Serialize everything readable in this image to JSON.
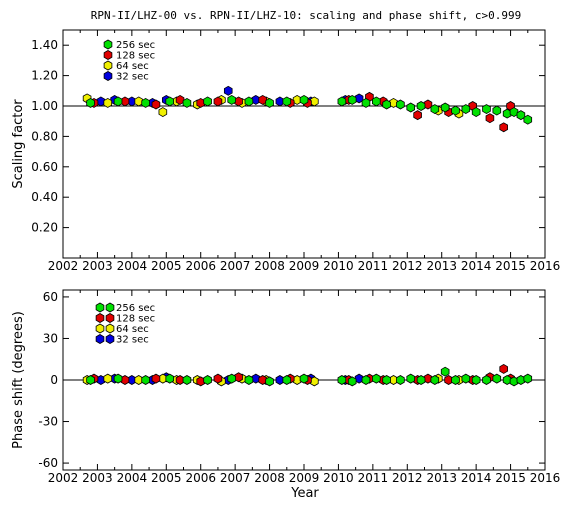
{
  "title": "RPN-II/LHZ-00 vs. RPN-II/LHZ-10: scaling and phase shift, c>0.999",
  "x_axis_label": "Year",
  "chart_data": [
    {
      "type": "scatter",
      "ylabel": "Scaling factor",
      "xlim": [
        2002,
        2016
      ],
      "ylim": [
        0.0,
        1.5
      ],
      "yticks": [
        0.2,
        0.4,
        0.6,
        0.8,
        1.0,
        1.2,
        1.4
      ],
      "ytick_labels": [
        "0.20",
        "0.40",
        "0.60",
        "0.80",
        "1.00",
        "1.20",
        "1.40"
      ],
      "xticks": [
        2002,
        2003,
        2004,
        2005,
        2006,
        2007,
        2008,
        2009,
        2010,
        2011,
        2012,
        2013,
        2014,
        2015,
        2016
      ],
      "reference_line": 1.0,
      "legend_position": "top-left",
      "series": [
        {
          "name": "256 sec",
          "color": "#00e000",
          "x": [
            2002.8,
            2003.6,
            2004.4,
            2005.1,
            2005.6,
            2006.2,
            2006.9,
            2007.4,
            2008.0,
            2008.5,
            2009.0,
            2010.1,
            2010.4,
            2010.8,
            2011.1,
            2011.4,
            2011.8,
            2012.1,
            2012.4,
            2012.8,
            2013.1,
            2013.4,
            2013.7,
            2014.0,
            2014.3,
            2014.6,
            2014.9,
            2015.1,
            2015.3,
            2015.5
          ],
          "y": [
            1.02,
            1.03,
            1.02,
            1.03,
            1.02,
            1.03,
            1.04,
            1.03,
            1.02,
            1.03,
            1.04,
            1.03,
            1.04,
            1.02,
            1.03,
            1.01,
            1.01,
            0.99,
            1.0,
            0.98,
            0.99,
            0.97,
            0.98,
            0.96,
            0.98,
            0.97,
            0.95,
            0.96,
            0.94,
            0.91
          ]
        },
        {
          "name": "128 sec",
          "color": "#e00000",
          "x": [
            2002.9,
            2003.8,
            2004.7,
            2005.4,
            2006.0,
            2006.5,
            2007.1,
            2007.8,
            2008.6,
            2009.1,
            2010.3,
            2010.9,
            2011.3,
            2012.3,
            2012.6,
            2013.2,
            2013.9,
            2014.4,
            2014.8,
            2015.0
          ],
          "y": [
            1.02,
            1.03,
            1.01,
            1.04,
            1.02,
            1.03,
            1.03,
            1.04,
            1.02,
            1.02,
            1.04,
            1.06,
            1.03,
            0.94,
            1.01,
            0.96,
            1.0,
            0.92,
            0.86,
            1.0
          ]
        },
        {
          "name": "64 sec",
          "color": "#f0f000",
          "x": [
            2002.7,
            2003.3,
            2004.2,
            2004.9,
            2005.3,
            2005.9,
            2006.6,
            2007.2,
            2007.9,
            2008.8,
            2009.3,
            2011.6,
            2012.9,
            2013.5
          ],
          "y": [
            1.05,
            1.02,
            1.03,
            0.96,
            1.03,
            1.01,
            1.04,
            1.02,
            1.03,
            1.04,
            1.03,
            1.02,
            0.97,
            0.95
          ]
        },
        {
          "name": "32 sec",
          "color": "#0000e0",
          "x": [
            2003.1,
            2003.5,
            2004.0,
            2004.6,
            2005.0,
            2006.8,
            2007.6,
            2008.3,
            2009.2,
            2010.2,
            2010.6
          ],
          "y": [
            1.03,
            1.04,
            1.03,
            1.02,
            1.04,
            1.1,
            1.04,
            1.03,
            1.03,
            1.04,
            1.05
          ]
        }
      ]
    },
    {
      "type": "scatter",
      "ylabel": "Phase shift (degrees)",
      "xlabel": "Year",
      "xlim": [
        2002,
        2016
      ],
      "ylim": [
        -65,
        65
      ],
      "yticks": [
        -60,
        -30,
        0,
        30,
        60
      ],
      "ytick_labels": [
        "-60",
        "-30",
        "0",
        "30",
        "60"
      ],
      "xticks": [
        2002,
        2003,
        2004,
        2005,
        2006,
        2007,
        2008,
        2009,
        2010,
        2011,
        2012,
        2013,
        2014,
        2015,
        2016
      ],
      "reference_line": 0,
      "legend_position": "top-left",
      "series": [
        {
          "name": "256 sec",
          "color": "#00e000",
          "x": [
            2002.8,
            2003.6,
            2004.4,
            2005.1,
            2005.6,
            2006.2,
            2006.9,
            2007.4,
            2008.0,
            2008.5,
            2009.0,
            2010.1,
            2010.4,
            2010.8,
            2011.1,
            2011.4,
            2011.8,
            2012.1,
            2012.4,
            2012.8,
            2013.1,
            2013.4,
            2013.7,
            2014.0,
            2014.3,
            2014.6,
            2014.9,
            2015.1,
            2015.3,
            2015.5
          ],
          "y": [
            0,
            1,
            0,
            1,
            0,
            0,
            1,
            0,
            -1,
            0,
            1,
            0,
            -1,
            0,
            1,
            0,
            0,
            1,
            0,
            0,
            6,
            0,
            1,
            0,
            0,
            1,
            0,
            -1,
            0,
            1
          ]
        },
        {
          "name": "128 sec",
          "color": "#e00000",
          "x": [
            2002.9,
            2003.8,
            2004.7,
            2005.4,
            2006.0,
            2006.5,
            2007.1,
            2007.8,
            2008.6,
            2009.1,
            2010.3,
            2010.9,
            2011.3,
            2012.3,
            2012.6,
            2013.2,
            2013.9,
            2014.4,
            2014.8,
            2015.0
          ],
          "y": [
            1,
            0,
            1,
            0,
            -1,
            1,
            2,
            0,
            1,
            0,
            0,
            1,
            0,
            0,
            1,
            0,
            0,
            2,
            8,
            1
          ]
        },
        {
          "name": "64 sec",
          "color": "#f0f000",
          "x": [
            2002.7,
            2003.3,
            2004.2,
            2004.9,
            2005.3,
            2005.9,
            2006.6,
            2007.2,
            2007.9,
            2008.8,
            2009.3,
            2011.6,
            2012.9,
            2013.5
          ],
          "y": [
            0,
            1,
            0,
            1,
            0,
            0,
            -1,
            1,
            0,
            0,
            -1,
            0,
            1,
            0
          ]
        },
        {
          "name": "32 sec",
          "color": "#0000e0",
          "x": [
            2003.1,
            2003.5,
            2004.0,
            2004.6,
            2005.0,
            2006.8,
            2007.6,
            2008.3,
            2009.2,
            2010.2,
            2010.6
          ],
          "y": [
            0,
            1,
            0,
            0,
            2,
            0,
            1,
            0,
            1,
            0,
            1
          ]
        }
      ]
    }
  ]
}
